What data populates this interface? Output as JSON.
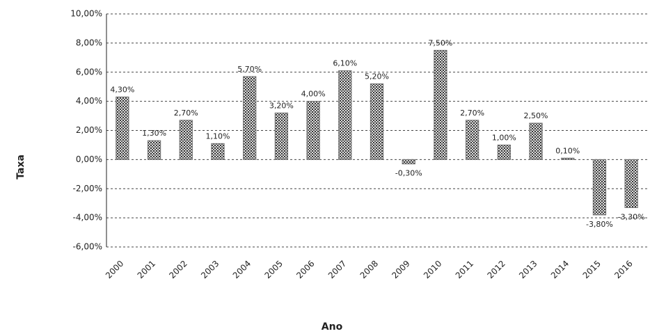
{
  "chart_data": {
    "type": "bar",
    "x_label": "Ano",
    "y_label": "Taxa",
    "categories": [
      "2000",
      "2001",
      "2002",
      "2003",
      "2004",
      "2005",
      "2006",
      "2007",
      "2008",
      "2009",
      "2010",
      "2011",
      "2012",
      "2013",
      "2014",
      "2015",
      "2016"
    ],
    "values": [
      4.3,
      1.3,
      2.7,
      1.1,
      5.7,
      3.2,
      4.0,
      6.1,
      5.2,
      -0.3,
      7.5,
      2.7,
      1.0,
      2.5,
      0.1,
      -3.8,
      -3.3
    ],
    "value_labels": [
      "4,30%",
      "1,30%",
      "2,70%",
      "1,10%",
      "5,70%",
      "3,20%",
      "4,00%",
      "6,10%",
      "5,20%",
      "-0,30%",
      "7,50%",
      "2,70%",
      "1,00%",
      "2,50%",
      "0,10%",
      "-3,80%",
      "-3,30%"
    ],
    "color": "#707070",
    "ylim": [
      -6,
      10
    ],
    "yticks": [
      {
        "value": 10,
        "label": "10,00%"
      },
      {
        "value": 8,
        "label": "8,00%"
      },
      {
        "value": 6,
        "label": "6,00%"
      },
      {
        "value": 4,
        "label": "4,00%"
      },
      {
        "value": 2,
        "label": "2,00%"
      },
      {
        "value": 0,
        "label": "0,00%"
      },
      {
        "value": -2,
        "label": "-2,00%"
      },
      {
        "value": -4,
        "label": "-4,00%"
      },
      {
        "value": -6,
        "label": "-6,00%"
      }
    ],
    "grid": true
  }
}
